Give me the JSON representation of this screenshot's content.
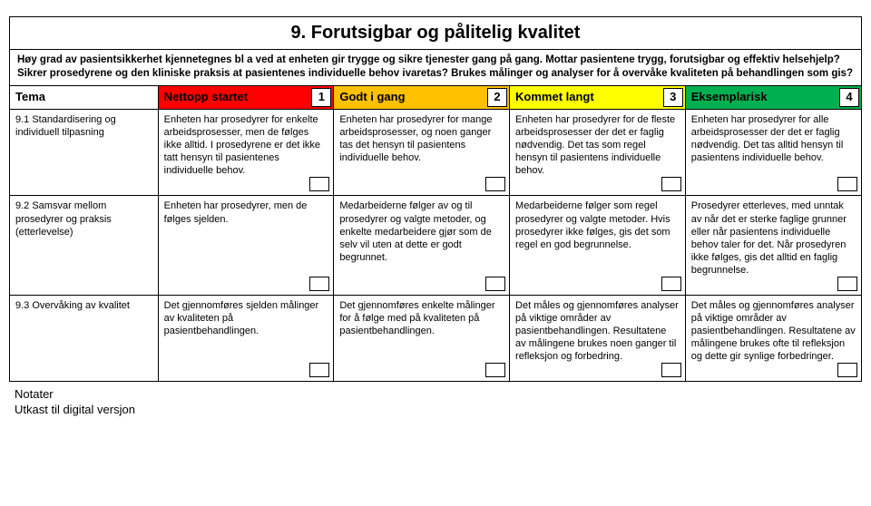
{
  "title": "9. Forutsigbar og pålitelig kvalitet",
  "intro": "Høy grad av pasientsikkerhet kjennetegnes bl a  ved at enheten gir trygge og sikre tjenester gang på gang. Mottar pasientene trygg, forutsigbar og effektiv helsehjelp? Sikrer prosedyrene og den kliniske praksis at pasientenes individuelle behov ivaretas? Brukes målinger og analyser for å overvåke kvaliteten på behandlingen som gis?",
  "headers": {
    "tema": "Tema",
    "levels": [
      {
        "label": "Nettopp startet",
        "num": "1",
        "bg": "#ff0000",
        "fg": "#000000"
      },
      {
        "label": "Godt i gang",
        "num": "2",
        "bg": "#ffc000",
        "fg": "#000000"
      },
      {
        "label": "Kommet langt",
        "num": "3",
        "bg": "#ffff00",
        "fg": "#000000"
      },
      {
        "label": "Eksemplarisk",
        "num": "4",
        "bg": "#00b050",
        "fg": "#000000"
      }
    ]
  },
  "rows": [
    {
      "tema": "9.1 Standardisering og individuell tilpasning",
      "cells": [
        "Enheten har prosedyrer for enkelte arbeidsprosesser, men de følges ikke alltid. I prosedyrene er det ikke tatt hensyn til pasientenes individuelle behov.",
        "Enheten har prosedyrer for mange arbeidsprosesser, og noen ganger tas det hensyn til pasientens individuelle behov.",
        "Enheten har prosedyrer for de fleste arbeidsprosesser der det er faglig nødvendig. Det tas som regel hensyn til pasientens individuelle behov.",
        "Enheten har prosedyrer for alle arbeidsprosesser der det er faglig nødvendig. Det tas alltid hensyn til pasientens individuelle behov."
      ]
    },
    {
      "tema": "9.2 Samsvar mellom prosedyrer og praksis (etterlevelse)",
      "cells": [
        "Enheten har prosedyrer, men de følges sjelden.",
        "Medarbeiderne følger av og til prosedyrer og valgte metoder, og enkelte medarbeidere gjør som de selv vil uten at dette er godt begrunnet.",
        "Medarbeiderne følger som regel prosedyrer og valgte metoder. Hvis prosedyrer ikke følges, gis det som regel en god begrunnelse.",
        "Prosedyrer etterleves, med unntak av når det er sterke faglige grunner eller når pasientens individuelle behov taler for det. Når prosedyren ikke følges, gis det alltid en faglig begrunnelse."
      ]
    },
    {
      "tema": "9.3 Overvåking av kvalitet",
      "cells": [
        "Det gjennomføres sjelden målinger av kvaliteten på pasientbehandlingen.",
        "Det gjennomføres enkelte målinger for å følge med på kvaliteten på pasientbehandlingen.",
        "Det måles og gjennomføres analyser på viktige områder av pasientbehandlingen. Resultatene av målingene brukes noen ganger til refleksjon og forbedring.",
        "Det måles og gjennomføres analyser på viktige områder av pasientbehandlingen. Resultatene av målingene brukes ofte til refleksjon og dette gir synlige forbedringer."
      ]
    }
  ],
  "footer": {
    "line1": "Notater",
    "line2": "Utkast til digital versjon"
  }
}
